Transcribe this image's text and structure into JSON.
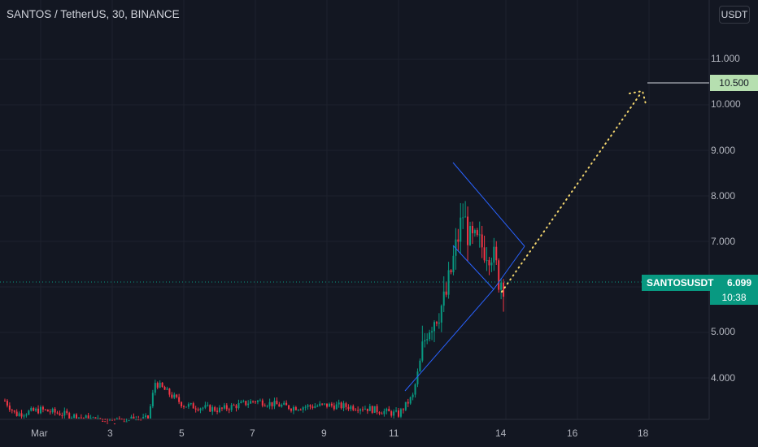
{
  "header": {
    "title": "SANTOS / TetherUS, 30, BINANCE",
    "unit_button": "USDT"
  },
  "colors": {
    "background": "#131722",
    "up": "#089981",
    "down": "#f23645",
    "pattern": "#2962ff",
    "projection": "#f5d76e",
    "target_tag": "#b6dfb0"
  },
  "chart_data": {
    "type": "candlestick",
    "title": "SANTOS / TetherUS, 30, BINANCE",
    "unit": "USDT",
    "y_ticks": [
      "4.000",
      "5.000",
      "6.000",
      "7.000",
      "8.000",
      "9.000",
      "10.000",
      "11.000"
    ],
    "x_ticks": [
      "Mar",
      "3",
      "5",
      "7",
      "9",
      "11",
      "14",
      "16",
      "18"
    ],
    "y_range": [
      3,
      11.5
    ],
    "series_approx": [
      {
        "day": 0.0,
        "price": 3.5
      },
      {
        "day": 0.3,
        "price": 3.2
      },
      {
        "day": 1.0,
        "price": 3.3
      },
      {
        "day": 2.0,
        "price": 3.15
      },
      {
        "day": 2.7,
        "price": 3.05
      },
      {
        "day": 4.0,
        "price": 3.1
      },
      {
        "day": 4.2,
        "price": 3.9
      },
      {
        "day": 5.0,
        "price": 3.4
      },
      {
        "day": 6.0,
        "price": 3.3
      },
      {
        "day": 7.0,
        "price": 3.5
      },
      {
        "day": 8.0,
        "price": 3.35
      },
      {
        "day": 9.0,
        "price": 3.4
      },
      {
        "day": 10.0,
        "price": 3.35
      },
      {
        "day": 11.0,
        "price": 3.2
      },
      {
        "day": 11.4,
        "price": 3.6
      },
      {
        "day": 11.8,
        "price": 5.1
      },
      {
        "day": 12.3,
        "price": 5.7
      },
      {
        "day": 12.8,
        "price": 7.6
      },
      {
        "day": 13.0,
        "price": 7.0
      },
      {
        "day": 13.6,
        "price": 6.8
      },
      {
        "day": 13.8,
        "price": 6.2
      },
      {
        "day": 14.0,
        "price": 6.099
      }
    ],
    "pattern": "symmetrical triangle with projected breakout",
    "last_price": "6.099",
    "target_price": "10.500",
    "time_to_close": "10:38",
    "symbol": "SANTOSUSDT"
  },
  "price_scale": {
    "target": "10.500",
    "current": "6.099",
    "countdown": "10:38",
    "symbol": "SANTOSUSDT"
  }
}
